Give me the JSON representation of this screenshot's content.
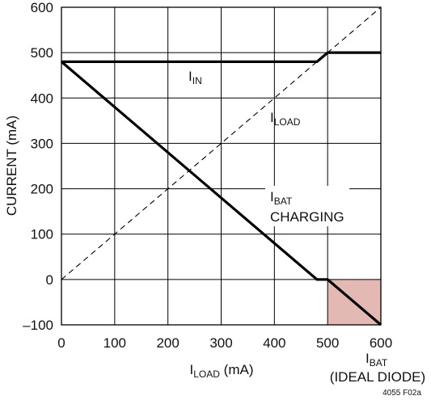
{
  "chart_data": {
    "type": "line",
    "xlabel": {
      "main": "I",
      "sub": "LOAD",
      "unit": " (mA)"
    },
    "ylabel": "CURRENT (mA)",
    "xlim": [
      0,
      600
    ],
    "ylim": [
      -100,
      600
    ],
    "xticks": [
      "0",
      "100",
      "200",
      "300",
      "400",
      "500",
      "600"
    ],
    "yticks": [
      "600",
      "500",
      "400",
      "300",
      "200",
      "100",
      "0",
      "–100"
    ],
    "grid": true,
    "series": [
      {
        "name": "IIN",
        "style": "solid",
        "points": [
          [
            0,
            480
          ],
          [
            480,
            480
          ],
          [
            500,
            500
          ],
          [
            600,
            500
          ]
        ]
      },
      {
        "name": "ILOAD",
        "style": "dashed",
        "points": [
          [
            0,
            0
          ],
          [
            600,
            600
          ]
        ]
      },
      {
        "name": "IBAT",
        "style": "solid",
        "points": [
          [
            0,
            480
          ],
          [
            480,
            0
          ],
          [
            500,
            0
          ],
          [
            600,
            -100
          ]
        ]
      }
    ],
    "shaded_region": {
      "x": [
        500,
        600
      ],
      "y": [
        -100,
        0
      ],
      "color": "#e4b9b4"
    },
    "annotations": {
      "iin": {
        "main": "I",
        "sub": "IN"
      },
      "iload": {
        "main": "I",
        "sub": "LOAD"
      },
      "ibat": {
        "main": "I",
        "sub": "BAT",
        "line2": "CHARGING"
      },
      "ibat_ideal": {
        "main": "I",
        "sub": "BAT",
        "line2": "(IDEAL DIODE)"
      }
    },
    "figure_note": "4055 F02a"
  },
  "colors": {
    "line": "#000000",
    "grid": "#000000",
    "shade": "#e4b9b4"
  }
}
